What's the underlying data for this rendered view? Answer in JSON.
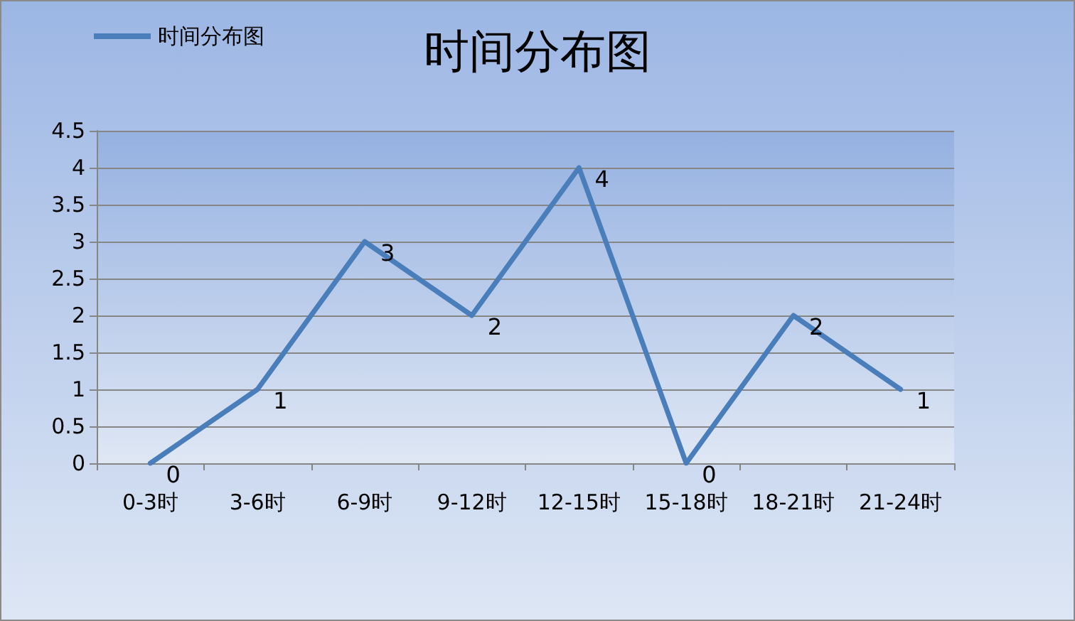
{
  "chart_data": {
    "type": "line",
    "title": "时间分布图",
    "categories": [
      "0-3时",
      "3-6时",
      "6-9时",
      "9-12时",
      "12-15时",
      "15-18时",
      "18-21时",
      "21-24时"
    ],
    "series": [
      {
        "name": "时间分布图",
        "color": "#4a7ebb",
        "values": [
          0,
          1,
          3,
          2,
          4,
          0,
          2,
          1
        ]
      }
    ],
    "ylim": [
      0,
      4.5
    ],
    "yticks": [
      0,
      0.5,
      1,
      1.5,
      2,
      2.5,
      3,
      3.5,
      4,
      4.5
    ],
    "grid": "y",
    "legend": "top left",
    "data_labels": true,
    "marker": "none",
    "line_style": "solid"
  }
}
